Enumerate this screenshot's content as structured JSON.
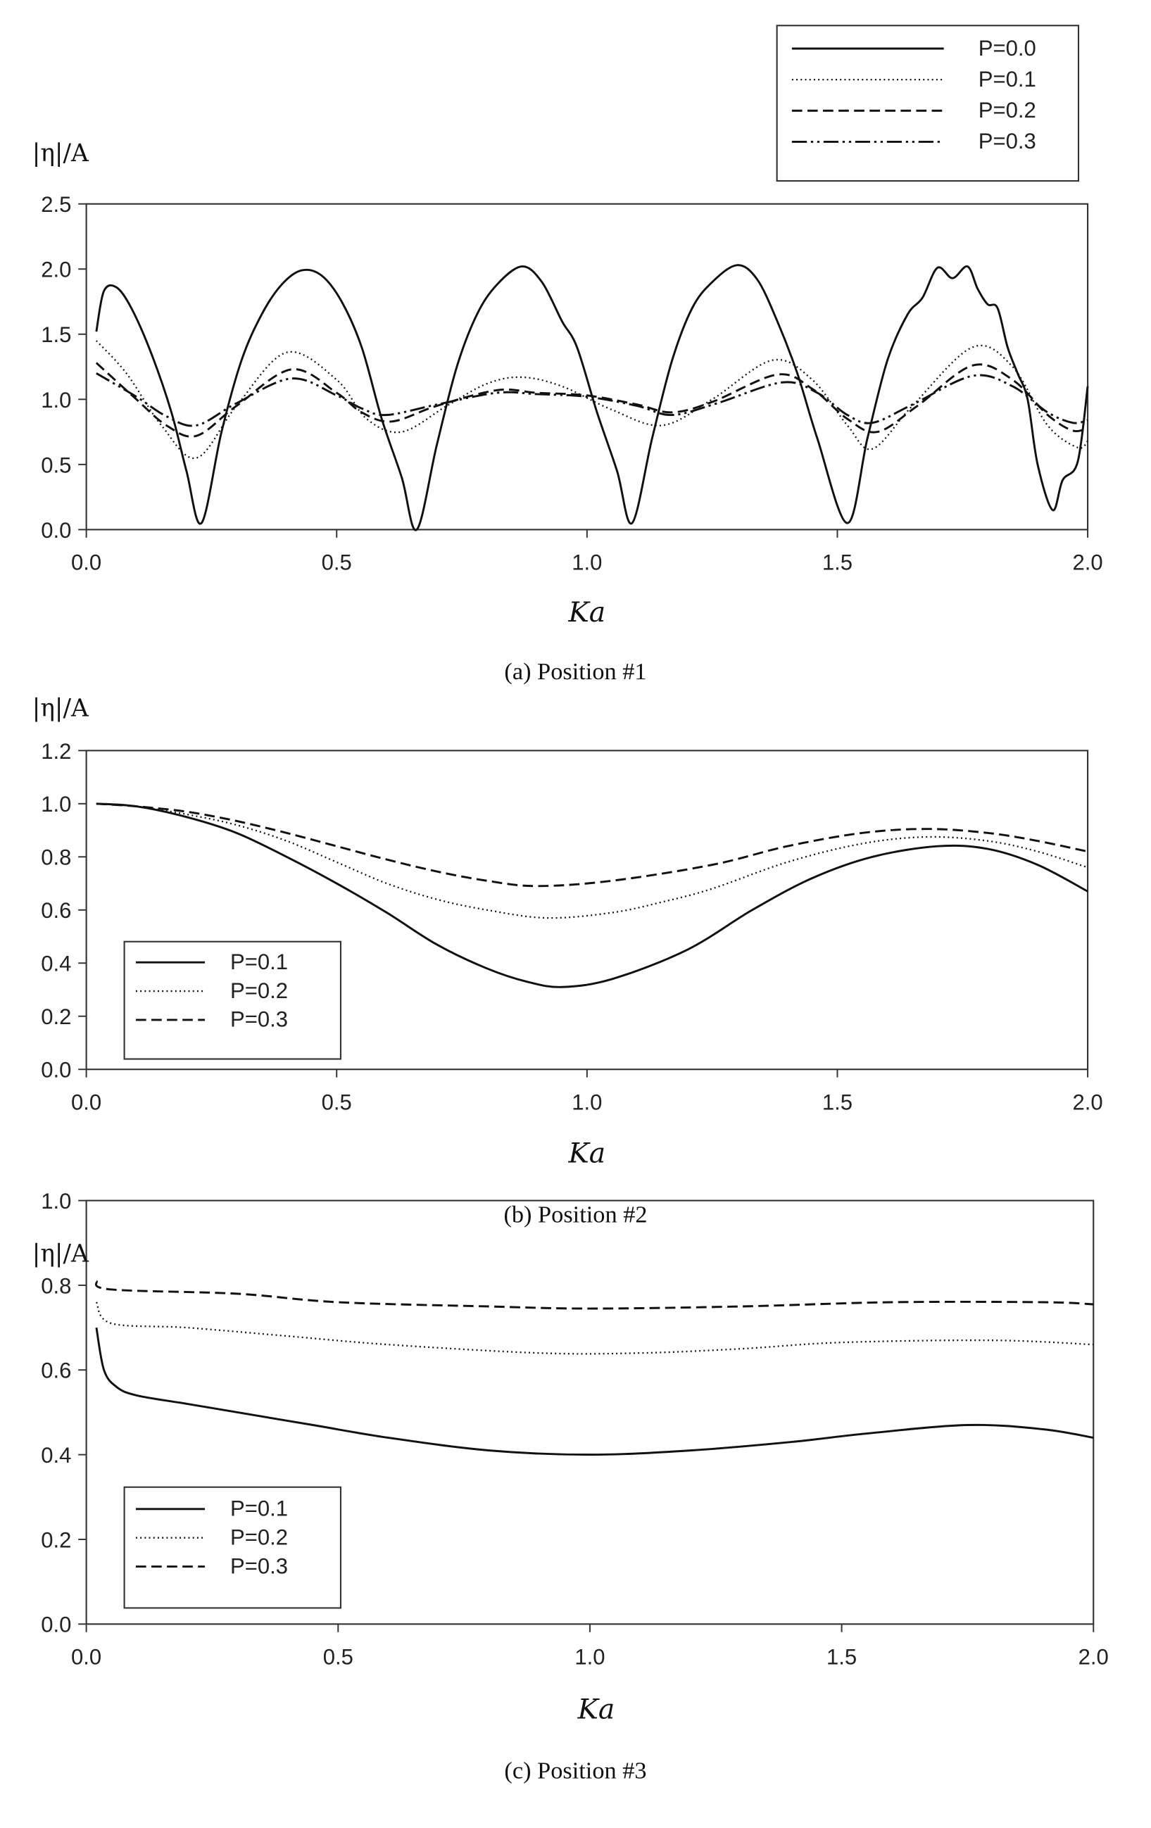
{
  "chart_data": [
    {
      "type": "line",
      "panel": "a",
      "caption": "(a)  Position #1",
      "xlabel": "Ka",
      "ylabel": "|η|/A",
      "xlim": [
        0,
        2
      ],
      "ylim": [
        0,
        2.5
      ],
      "xticks": [
        "0.0",
        "0.5",
        "1.0",
        "1.5",
        "2.0"
      ],
      "yticks": [
        "0.0",
        "0.5",
        "1.0",
        "1.5",
        "2.0",
        "2.5"
      ],
      "legend_position": "top-right-outside",
      "grid": false,
      "series": [
        {
          "name": "P=0.0",
          "style": "solid",
          "points": [
            [
              0.02,
              1.52
            ],
            [
              0.035,
              1.83
            ],
            [
              0.06,
              1.86
            ],
            [
              0.09,
              1.7
            ],
            [
              0.13,
              1.35
            ],
            [
              0.17,
              0.9
            ],
            [
              0.2,
              0.45
            ],
            [
              0.23,
              0.05
            ],
            [
              0.27,
              0.75
            ],
            [
              0.31,
              1.3
            ],
            [
              0.35,
              1.65
            ],
            [
              0.39,
              1.88
            ],
            [
              0.43,
              1.99
            ],
            [
              0.47,
              1.95
            ],
            [
              0.51,
              1.75
            ],
            [
              0.55,
              1.4
            ],
            [
              0.59,
              0.85
            ],
            [
              0.63,
              0.4
            ],
            [
              0.66,
              0.0
            ],
            [
              0.7,
              0.65
            ],
            [
              0.74,
              1.25
            ],
            [
              0.78,
              1.65
            ],
            [
              0.82,
              1.88
            ],
            [
              0.87,
              2.02
            ],
            [
              0.91,
              1.9
            ],
            [
              0.95,
              1.6
            ],
            [
              0.98,
              1.4
            ],
            [
              1.02,
              0.9
            ],
            [
              1.06,
              0.45
            ],
            [
              1.09,
              0.05
            ],
            [
              1.13,
              0.7
            ],
            [
              1.17,
              1.3
            ],
            [
              1.21,
              1.7
            ],
            [
              1.25,
              1.9
            ],
            [
              1.3,
              2.03
            ],
            [
              1.34,
              1.92
            ],
            [
              1.38,
              1.6
            ],
            [
              1.42,
              1.2
            ],
            [
              1.46,
              0.7
            ],
            [
              1.52,
              0.05
            ],
            [
              1.56,
              0.7
            ],
            [
              1.6,
              1.3
            ],
            [
              1.64,
              1.65
            ],
            [
              1.67,
              1.78
            ],
            [
              1.7,
              2.01
            ],
            [
              1.73,
              1.93
            ],
            [
              1.76,
              2.02
            ],
            [
              1.78,
              1.85
            ],
            [
              1.8,
              1.73
            ],
            [
              1.82,
              1.7
            ],
            [
              1.84,
              1.4
            ],
            [
              1.86,
              1.2
            ],
            [
              1.88,
              1.0
            ],
            [
              1.9,
              0.5
            ],
            [
              1.93,
              0.15
            ],
            [
              1.95,
              0.38
            ],
            [
              1.98,
              0.52
            ],
            [
              2.0,
              1.1
            ]
          ]
        },
        {
          "name": "P=0.1",
          "style": "dotted",
          "points": [
            [
              0.02,
              1.45
            ],
            [
              0.08,
              1.2
            ],
            [
              0.15,
              0.8
            ],
            [
              0.22,
              0.55
            ],
            [
              0.3,
              0.95
            ],
            [
              0.4,
              1.36
            ],
            [
              0.5,
              1.15
            ],
            [
              0.56,
              0.85
            ],
            [
              0.63,
              0.75
            ],
            [
              0.72,
              0.95
            ],
            [
              0.8,
              1.12
            ],
            [
              0.87,
              1.17
            ],
            [
              0.95,
              1.1
            ],
            [
              1.05,
              0.92
            ],
            [
              1.15,
              0.8
            ],
            [
              1.25,
              1.0
            ],
            [
              1.37,
              1.3
            ],
            [
              1.45,
              1.15
            ],
            [
              1.52,
              0.8
            ],
            [
              1.57,
              0.62
            ],
            [
              1.65,
              0.95
            ],
            [
              1.77,
              1.4
            ],
            [
              1.85,
              1.25
            ],
            [
              1.92,
              0.8
            ],
            [
              1.98,
              0.63
            ],
            [
              2.0,
              0.68
            ]
          ]
        },
        {
          "name": "P=0.2",
          "style": "dashed",
          "points": [
            [
              0.02,
              1.28
            ],
            [
              0.1,
              1.0
            ],
            [
              0.16,
              0.8
            ],
            [
              0.22,
              0.72
            ],
            [
              0.3,
              0.95
            ],
            [
              0.41,
              1.23
            ],
            [
              0.5,
              1.05
            ],
            [
              0.55,
              0.9
            ],
            [
              0.61,
              0.83
            ],
            [
              0.7,
              0.95
            ],
            [
              0.82,
              1.07
            ],
            [
              0.9,
              1.05
            ],
            [
              1.0,
              1.03
            ],
            [
              1.1,
              0.96
            ],
            [
              1.17,
              0.9
            ],
            [
              1.25,
              0.98
            ],
            [
              1.38,
              1.19
            ],
            [
              1.45,
              1.08
            ],
            [
              1.52,
              0.85
            ],
            [
              1.58,
              0.75
            ],
            [
              1.66,
              0.95
            ],
            [
              1.77,
              1.26
            ],
            [
              1.85,
              1.15
            ],
            [
              1.92,
              0.88
            ],
            [
              1.97,
              0.76
            ],
            [
              2.0,
              0.78
            ]
          ]
        },
        {
          "name": "P=0.3",
          "style": "dashdotdot",
          "points": [
            [
              0.02,
              1.2
            ],
            [
              0.1,
              1.02
            ],
            [
              0.16,
              0.87
            ],
            [
              0.22,
              0.8
            ],
            [
              0.3,
              0.97
            ],
            [
              0.41,
              1.16
            ],
            [
              0.5,
              1.03
            ],
            [
              0.55,
              0.93
            ],
            [
              0.6,
              0.88
            ],
            [
              0.7,
              0.96
            ],
            [
              0.82,
              1.05
            ],
            [
              0.9,
              1.04
            ],
            [
              1.0,
              1.02
            ],
            [
              1.1,
              0.95
            ],
            [
              1.17,
              0.88
            ],
            [
              1.26,
              0.97
            ],
            [
              1.39,
              1.13
            ],
            [
              1.46,
              1.05
            ],
            [
              1.52,
              0.88
            ],
            [
              1.57,
              0.82
            ],
            [
              1.65,
              0.96
            ],
            [
              1.77,
              1.18
            ],
            [
              1.85,
              1.1
            ],
            [
              1.92,
              0.9
            ],
            [
              1.97,
              0.82
            ],
            [
              2.0,
              0.84
            ]
          ]
        }
      ]
    },
    {
      "type": "line",
      "panel": "b",
      "caption": "(b)  Position #2",
      "xlabel": "Ka",
      "ylabel": "|η|/A",
      "xlim": [
        0,
        2
      ],
      "ylim": [
        0,
        1.2
      ],
      "xticks": [
        "0.0",
        "0.5",
        "1.0",
        "1.5",
        "2.0"
      ],
      "yticks": [
        "0.0",
        "0.2",
        "0.4",
        "0.6",
        "0.8",
        "1.0",
        "1.2"
      ],
      "legend_position": "bottom-left",
      "grid": false,
      "series": [
        {
          "name": "P=0.1",
          "style": "solid",
          "points": [
            [
              0.02,
              1.0
            ],
            [
              0.1,
              0.99
            ],
            [
              0.2,
              0.95
            ],
            [
              0.3,
              0.89
            ],
            [
              0.4,
              0.8
            ],
            [
              0.5,
              0.7
            ],
            [
              0.6,
              0.59
            ],
            [
              0.7,
              0.47
            ],
            [
              0.8,
              0.38
            ],
            [
              0.88,
              0.33
            ],
            [
              0.95,
              0.31
            ],
            [
              1.05,
              0.34
            ],
            [
              1.2,
              0.45
            ],
            [
              1.33,
              0.6
            ],
            [
              1.45,
              0.72
            ],
            [
              1.57,
              0.8
            ],
            [
              1.7,
              0.84
            ],
            [
              1.8,
              0.83
            ],
            [
              1.9,
              0.77
            ],
            [
              2.0,
              0.67
            ]
          ]
        },
        {
          "name": "P=0.2",
          "style": "dotted",
          "points": [
            [
              0.02,
              1.0
            ],
            [
              0.1,
              0.99
            ],
            [
              0.2,
              0.96
            ],
            [
              0.3,
              0.92
            ],
            [
              0.4,
              0.86
            ],
            [
              0.5,
              0.78
            ],
            [
              0.6,
              0.7
            ],
            [
              0.7,
              0.64
            ],
            [
              0.8,
              0.6
            ],
            [
              0.92,
              0.57
            ],
            [
              1.05,
              0.59
            ],
            [
              1.15,
              0.63
            ],
            [
              1.25,
              0.68
            ],
            [
              1.4,
              0.78
            ],
            [
              1.55,
              0.85
            ],
            [
              1.68,
              0.875
            ],
            [
              1.8,
              0.86
            ],
            [
              1.9,
              0.82
            ],
            [
              2.0,
              0.76
            ]
          ]
        },
        {
          "name": "P=0.3",
          "style": "dashed",
          "points": [
            [
              0.02,
              1.0
            ],
            [
              0.1,
              0.99
            ],
            [
              0.2,
              0.97
            ],
            [
              0.3,
              0.935
            ],
            [
              0.4,
              0.89
            ],
            [
              0.5,
              0.84
            ],
            [
              0.6,
              0.79
            ],
            [
              0.7,
              0.745
            ],
            [
              0.8,
              0.71
            ],
            [
              0.9,
              0.69
            ],
            [
              1.05,
              0.71
            ],
            [
              1.25,
              0.77
            ],
            [
              1.4,
              0.84
            ],
            [
              1.55,
              0.89
            ],
            [
              1.68,
              0.905
            ],
            [
              1.8,
              0.89
            ],
            [
              1.9,
              0.86
            ],
            [
              2.0,
              0.82
            ]
          ]
        }
      ]
    },
    {
      "type": "line",
      "panel": "c",
      "caption": "(c)  Position #3",
      "xlabel": "Ka",
      "ylabel": "|η|/A",
      "xlim": [
        0,
        2
      ],
      "ylim": [
        0,
        1.0
      ],
      "xticks": [
        "0.0",
        "0.5",
        "1.0",
        "1.5",
        "2.0"
      ],
      "yticks": [
        "0.0",
        "0.2",
        "0.4",
        "0.6",
        "0.8",
        "1.0"
      ],
      "legend_position": "bottom-left",
      "grid": false,
      "series": [
        {
          "name": "P=0.1",
          "style": "solid",
          "points": [
            [
              0.02,
              0.7
            ],
            [
              0.035,
              0.6
            ],
            [
              0.06,
              0.56
            ],
            [
              0.1,
              0.54
            ],
            [
              0.2,
              0.52
            ],
            [
              0.3,
              0.5
            ],
            [
              0.45,
              0.47
            ],
            [
              0.6,
              0.44
            ],
            [
              0.8,
              0.41
            ],
            [
              1.0,
              0.4
            ],
            [
              1.2,
              0.41
            ],
            [
              1.4,
              0.43
            ],
            [
              1.55,
              0.45
            ],
            [
              1.75,
              0.47
            ],
            [
              1.9,
              0.46
            ],
            [
              2.0,
              0.44
            ]
          ]
        },
        {
          "name": "P=0.2",
          "style": "dotted",
          "points": [
            [
              0.02,
              0.76
            ],
            [
              0.05,
              0.71
            ],
            [
              0.2,
              0.7
            ],
            [
              0.4,
              0.68
            ],
            [
              0.6,
              0.66
            ],
            [
              0.9,
              0.64
            ],
            [
              1.1,
              0.64
            ],
            [
              1.3,
              0.65
            ],
            [
              1.5,
              0.665
            ],
            [
              1.8,
              0.67
            ],
            [
              2.0,
              0.66
            ]
          ]
        },
        {
          "name": "P=0.3",
          "style": "dashed",
          "points": [
            [
              0.02,
              0.81
            ],
            [
              0.05,
              0.79
            ],
            [
              0.3,
              0.78
            ],
            [
              0.5,
              0.76
            ],
            [
              0.8,
              0.75
            ],
            [
              1.0,
              0.745
            ],
            [
              1.3,
              0.75
            ],
            [
              1.6,
              0.76
            ],
            [
              1.9,
              0.76
            ],
            [
              2.0,
              0.755
            ]
          ]
        }
      ]
    }
  ]
}
